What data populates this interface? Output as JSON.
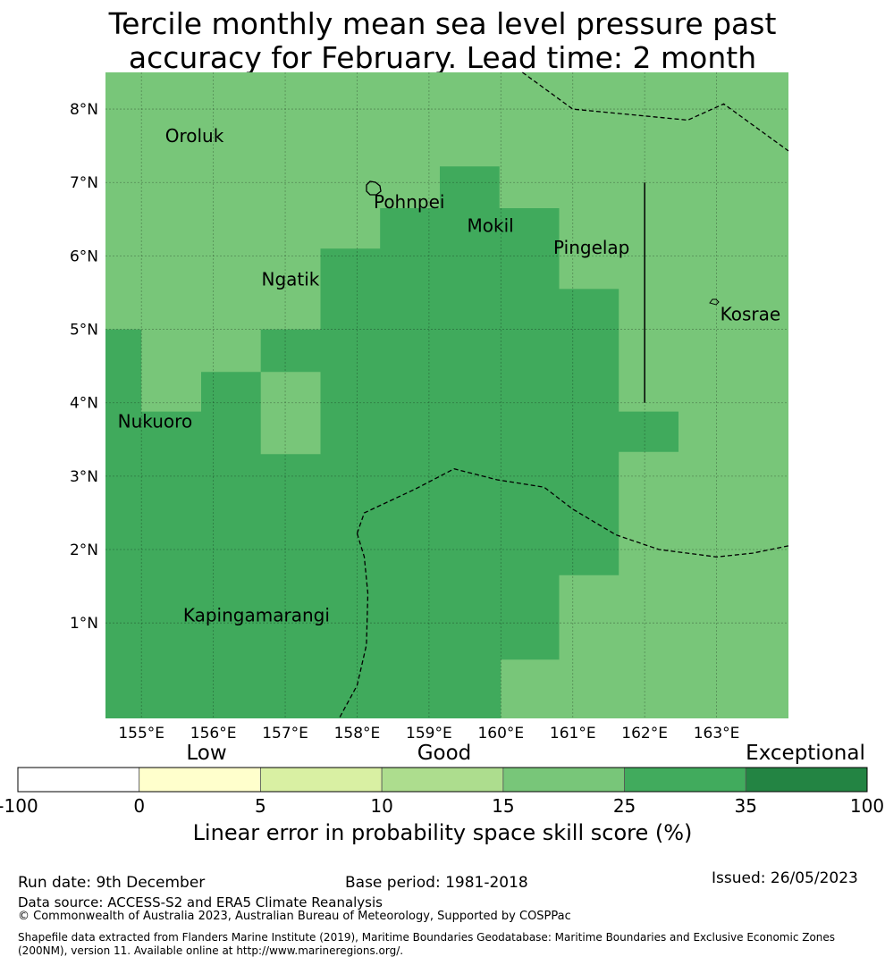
{
  "title": {
    "line1": "Tercile monthly mean sea level pressure past",
    "line2": "accuracy for February. Lead time: 2 month"
  },
  "map": {
    "lon_range": [
      154.5,
      164.0
    ],
    "lat_range": [
      -0.3,
      8.5
    ],
    "lon_ticks": [
      "155°E",
      "156°E",
      "157°E",
      "158°E",
      "159°E",
      "160°E",
      "161°E",
      "162°E",
      "163°E"
    ],
    "lat_ticks": [
      "1°N",
      "2°N",
      "3°N",
      "4°N",
      "5°N",
      "6°N",
      "7°N",
      "8°N"
    ],
    "gridlines": true,
    "colors": {
      "good_25_35": "#40aa5c",
      "good_15_25": "#78c679"
    },
    "places": [
      {
        "name": "Oroluk",
        "lon": 155.33,
        "lat": 7.55
      },
      {
        "name": "Pohnpei",
        "lon": 158.23,
        "lat": 6.65
      },
      {
        "name": "Mokil",
        "lon": 159.53,
        "lat": 6.33
      },
      {
        "name": "Pingelap",
        "lon": 160.73,
        "lat": 6.03
      },
      {
        "name": "Ngatik",
        "lon": 156.67,
        "lat": 5.6
      },
      {
        "name": "Kosrae",
        "lon": 163.05,
        "lat": 5.12
      },
      {
        "name": "Nukuoro",
        "lon": 154.67,
        "lat": 3.66
      },
      {
        "name": "Kapingamarangi",
        "lon": 155.58,
        "lat": 1.02
      }
    ]
  },
  "colorbar": {
    "ticks": [
      "-100",
      "0",
      "5",
      "10",
      "15",
      "25",
      "35",
      "100"
    ],
    "colors": [
      "#ffffff",
      "#ffffcc",
      "#d9f0a3",
      "#addd8e",
      "#78c679",
      "#41ab5d",
      "#238443"
    ],
    "categories": [
      {
        "label": "Low",
        "position": "left"
      },
      {
        "label": "Good",
        "position": "center"
      },
      {
        "label": "Exceptional",
        "position": "right"
      }
    ],
    "label": "Linear error in probability space skill score (%)"
  },
  "footer": {
    "run_date": "Run date: 9th December",
    "base_period": "Base period: 1981-2018",
    "issued": "Issued: 26/05/2023",
    "source": "Data source: ACCESS-S2 and ERA5 Climate Reanalysis",
    "copyright": "© Commonwealth of Australia 2023, Australian Bureau of Meteorology, Supported by COSPPac",
    "shapefile_line1": "Shapefile data extracted from Flanders Marine Institute (2019), Maritime Boundaries Geodatabase: Maritime Boundaries and Exclusive Economic Zones",
    "shapefile_line2": "(200NM), version 11. Available online at http://www.marineregions.org/."
  }
}
